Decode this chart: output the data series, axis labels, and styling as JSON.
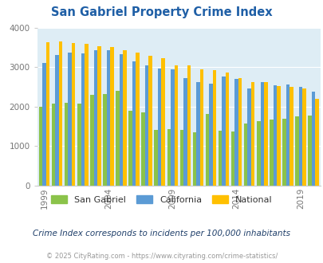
{
  "title": "San Gabriel Property Crime Index",
  "years": [
    1999,
    2000,
    2001,
    2002,
    2003,
    2004,
    2005,
    2006,
    2007,
    2008,
    2009,
    2010,
    2011,
    2012,
    2013,
    2014,
    2015,
    2016,
    2017,
    2018,
    2019,
    2020
  ],
  "san_gabriel": [
    2000,
    2070,
    2100,
    2080,
    2300,
    2310,
    2390,
    1900,
    1850,
    1400,
    1430,
    1400,
    1350,
    1820,
    1380,
    1370,
    1560,
    1630,
    1660,
    1700,
    1760,
    1780
  ],
  "california": [
    3100,
    3310,
    3360,
    3340,
    3430,
    3430,
    3330,
    3150,
    3050,
    2960,
    2940,
    2730,
    2610,
    2580,
    2760,
    2700,
    2460,
    2620,
    2540,
    2560,
    2490,
    2370
  ],
  "national": [
    3620,
    3650,
    3610,
    3590,
    3520,
    3500,
    3420,
    3360,
    3280,
    3230,
    3050,
    3050,
    2950,
    2930,
    2870,
    2720,
    2610,
    2620,
    2510,
    2500,
    2450,
    2190
  ],
  "san_gabriel_color": "#8bc34a",
  "california_color": "#5b9bd5",
  "national_color": "#ffc000",
  "plot_bg_color": "#deedf5",
  "ylim": [
    0,
    4000
  ],
  "yticks": [
    0,
    1000,
    2000,
    3000,
    4000
  ],
  "xlabel_ticks": [
    1999,
    2004,
    2009,
    2014,
    2019
  ],
  "title_color": "#1f5fa6",
  "title_fontsize": 10.5,
  "subtitle": "Crime Index corresponds to incidents per 100,000 inhabitants",
  "footer": "© 2025 CityRating.com - https://www.cityrating.com/crime-statistics/",
  "legend_labels": [
    "San Gabriel",
    "California",
    "National"
  ]
}
